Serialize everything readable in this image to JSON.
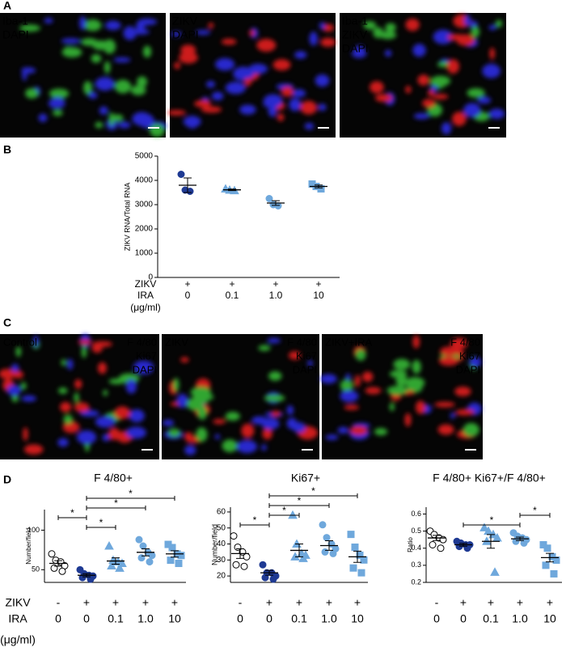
{
  "panel_a": {
    "letter": "A",
    "images": [
      {
        "labels": [
          {
            "text": "Iba-1",
            "color": "#3ccf3c"
          },
          {
            "text": "DAPI",
            "color": "#3030ff"
          }
        ]
      },
      {
        "labels": [
          {
            "text": "ZIKV",
            "color": "#ff2020"
          },
          {
            "text": "DAPI",
            "color": "#3030ff"
          }
        ]
      },
      {
        "labels": [
          {
            "text": "Iba-1",
            "color": "#3ccf3c"
          },
          {
            "text": "ZIKV",
            "color": "#ff2020"
          },
          {
            "text": "DAPI",
            "color": "#3030ff"
          }
        ]
      }
    ]
  },
  "panel_b": {
    "letter": "B"
  },
  "panel_c": {
    "letter": "C",
    "images": [
      {
        "title": "Control",
        "labels": [
          {
            "text": "F 4/80",
            "color": "#3ccf3c"
          },
          {
            "text": "Ki67",
            "color": "#ff2020"
          },
          {
            "text": "DAPI",
            "color": "#3030ff"
          }
        ]
      },
      {
        "title": "ZIKV",
        "labels": [
          {
            "text": "F 4/80",
            "color": "#3ccf3c"
          },
          {
            "text": "Ki67",
            "color": "#ff2020"
          },
          {
            "text": "DAPI",
            "color": "#3030ff"
          }
        ]
      },
      {
        "title": "ZIKV+IRA",
        "labels": [
          {
            "text": "F 4/80",
            "color": "#3ccf3c"
          },
          {
            "text": "Ki67",
            "color": "#ff2020"
          },
          {
            "text": "DAPI",
            "color": "#3030ff"
          }
        ]
      }
    ]
  },
  "panel_d": {
    "letter": "D"
  },
  "chart_data": [
    {
      "type": "dotplot",
      "ylabel": "ZIKV RNA/Total RNA",
      "ylim": [
        0,
        5000
      ],
      "yticks": [
        0,
        1000,
        2000,
        3000,
        4000,
        5000
      ],
      "row_labels": [
        "ZIKV",
        "IRA",
        "(μg/ml)"
      ],
      "rows": [
        [
          "+",
          "+",
          "+",
          "+"
        ],
        [
          "0",
          "0.1",
          "1.0",
          "10"
        ]
      ],
      "groups": [
        {
          "marker": "circle",
          "color": "#1f3a93",
          "filled": true,
          "points": [
            4250,
            3600,
            3550
          ],
          "mean": 3800,
          "sem": 300
        },
        {
          "marker": "triangle",
          "color": "#6fa8dc",
          "filled": true,
          "points": [
            3650,
            3600,
            3580
          ],
          "mean": 3610,
          "sem": 30
        },
        {
          "marker": "circle",
          "color": "#6fa8dc",
          "filled": true,
          "points": [
            3250,
            3000,
            2950
          ],
          "mean": 3067,
          "sem": 95
        },
        {
          "marker": "square",
          "color": "#6fa8dc",
          "filled": true,
          "points": [
            3850,
            3750,
            3650
          ],
          "mean": 3750,
          "sem": 60
        }
      ],
      "brackets": []
    },
    {
      "type": "dotplot",
      "title": "F 4/80+",
      "ylabel": "Number/field",
      "ylim": [
        34,
        126
      ],
      "yticks": [
        50,
        100
      ],
      "row_labels": [
        "ZIKV",
        "IRA",
        "(μg/ml)"
      ],
      "rows": [
        [
          "-",
          "+",
          "+",
          "+",
          "+"
        ],
        [
          "0",
          "0",
          "0.1",
          "1.0",
          "10"
        ]
      ],
      "groups": [
        {
          "marker": "circle",
          "color": "#000000",
          "filled": false,
          "points": [
            70,
            62,
            60,
            55,
            52,
            48
          ],
          "mean": 58,
          "sem": 3.5
        },
        {
          "marker": "circle",
          "color": "#1f3a93",
          "filled": true,
          "points": [
            50,
            45,
            43,
            42,
            40,
            38
          ],
          "mean": 43,
          "sem": 2
        },
        {
          "marker": "triangle",
          "color": "#6fa8dc",
          "filled": true,
          "points": [
            80,
            62,
            60,
            58,
            55,
            52
          ],
          "mean": 61,
          "sem": 4
        },
        {
          "marker": "circle",
          "color": "#6fa8dc",
          "filled": true,
          "points": [
            88,
            80,
            72,
            68,
            65,
            60
          ],
          "mean": 72,
          "sem": 4.5
        },
        {
          "marker": "square",
          "color": "#6fa8dc",
          "filled": true,
          "points": [
            82,
            78,
            70,
            68,
            62,
            58
          ],
          "mean": 70,
          "sem": 4
        }
      ],
      "brackets": [
        {
          "from": 1,
          "to": 2,
          "label": "*"
        },
        {
          "from": 0,
          "to": 1,
          "label": "*"
        },
        {
          "from": 1,
          "to": 3,
          "label": "*"
        },
        {
          "from": 1,
          "to": 4,
          "label": "*"
        }
      ]
    },
    {
      "type": "dotplot",
      "title": "Ki67+",
      "ylabel": "Number/field",
      "ylim": [
        16,
        63
      ],
      "yticks": [
        20,
        30,
        40,
        50,
        60
      ],
      "rows": [
        [
          "-",
          "+",
          "+",
          "+",
          "+"
        ],
        [
          "0",
          "0",
          "0.1",
          "1.0",
          "10"
        ]
      ],
      "groups": [
        {
          "marker": "circle",
          "color": "#000000",
          "filled": false,
          "points": [
            45,
            38,
            35,
            32,
            27,
            26
          ],
          "mean": 34,
          "sem": 3
        },
        {
          "marker": "circle",
          "color": "#1f3a93",
          "filled": true,
          "points": [
            27,
            22,
            22,
            20,
            19,
            18
          ],
          "mean": 22,
          "sem": 1.5
        },
        {
          "marker": "triangle",
          "color": "#6fa8dc",
          "filled": true,
          "points": [
            58,
            40,
            34,
            33,
            32,
            31
          ],
          "mean": 36,
          "sem": 4
        },
        {
          "marker": "circle",
          "color": "#6fa8dc",
          "filled": true,
          "points": [
            52,
            44,
            40,
            37,
            35,
            34
          ],
          "mean": 39,
          "sem": 3
        },
        {
          "marker": "square",
          "color": "#6fa8dc",
          "filled": true,
          "points": [
            46,
            38,
            33,
            30,
            25,
            22
          ],
          "mean": 32,
          "sem": 3.5
        }
      ],
      "brackets": [
        {
          "from": 0,
          "to": 1,
          "label": "*"
        },
        {
          "from": 1,
          "to": 2,
          "label": "*"
        },
        {
          "from": 1,
          "to": 3,
          "label": "*"
        },
        {
          "from": 1,
          "to": 4,
          "label": "*"
        }
      ]
    },
    {
      "type": "dotplot",
      "title": "F 4/80+ Ki67+/F 4/80+",
      "ylabel": "Ratio",
      "ylim": [
        0.2,
        0.64
      ],
      "yticks": [
        0.2,
        0.3,
        0.4,
        0.5,
        0.6
      ],
      "rows": [
        [
          "-",
          "+",
          "+",
          "+",
          "+"
        ],
        [
          "0",
          "0",
          "0.1",
          "1.0",
          "10"
        ]
      ],
      "groups": [
        {
          "marker": "circle",
          "color": "#000000",
          "filled": false,
          "points": [
            0.5,
            0.48,
            0.46,
            0.45,
            0.42,
            0.4
          ],
          "mean": 0.46,
          "sem": 0.015
        },
        {
          "marker": "circle",
          "color": "#1f3a93",
          "filled": true,
          "points": [
            0.44,
            0.43,
            0.42,
            0.42,
            0.41,
            0.4
          ],
          "mean": 0.42,
          "sem": 0.008
        },
        {
          "marker": "triangle",
          "color": "#6fa8dc",
          "filled": true,
          "points": [
            0.52,
            0.5,
            0.48,
            0.46,
            0.44,
            0.26
          ],
          "mean": 0.44,
          "sem": 0.04
        },
        {
          "marker": "circle",
          "color": "#6fa8dc",
          "filled": true,
          "points": [
            0.49,
            0.47,
            0.46,
            0.45,
            0.44,
            0.43
          ],
          "mean": 0.455,
          "sem": 0.01
        },
        {
          "marker": "square",
          "color": "#6fa8dc",
          "filled": true,
          "points": [
            0.42,
            0.4,
            0.35,
            0.33,
            0.3,
            0.25
          ],
          "mean": 0.345,
          "sem": 0.025
        }
      ],
      "brackets": [
        {
          "from": 1,
          "to": 3,
          "label": "*"
        },
        {
          "from": 3,
          "to": 4,
          "label": "*"
        }
      ]
    }
  ]
}
